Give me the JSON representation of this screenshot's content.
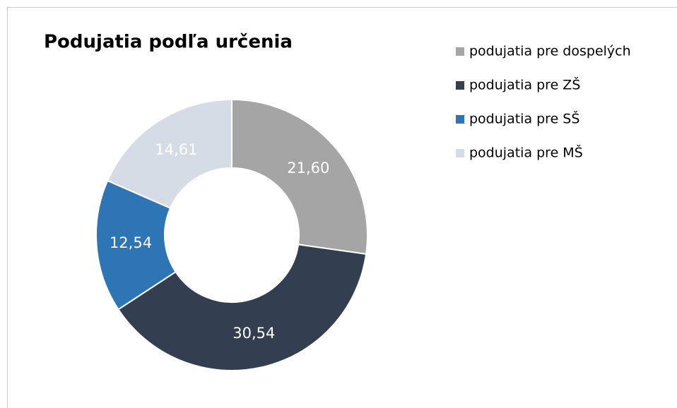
{
  "chart_data": {
    "type": "donut",
    "title": "Podujatia podľa určenia",
    "categories": [
      "podujatia pre dospelých",
      "podujatia pre ZŠ",
      "podujatia pre SŠ",
      "podujatia pre MŠ"
    ],
    "values": [
      21.6,
      30.54,
      12.54,
      14.61
    ],
    "value_labels": [
      "21,60",
      "30,54",
      "12,54",
      "14,61"
    ],
    "colors": [
      "#a5a5a5",
      "#333f50",
      "#2e75b6",
      "#d6dce5"
    ],
    "legend": "right"
  }
}
